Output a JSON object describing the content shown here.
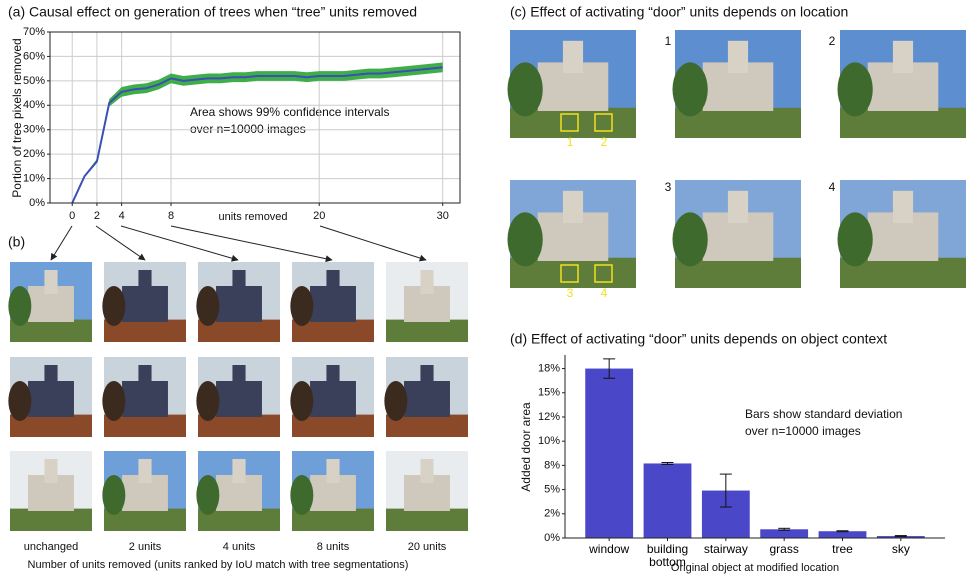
{
  "chart_data": [
    {
      "type": "line",
      "title": "(a) Causal effect on generation of trees when “tree” units removed",
      "xlabel": "units removed",
      "ylabel": "Portion of tree pixels removed",
      "annotation": [
        "Area shows 99% confidence intervals",
        "over n=10000 images"
      ],
      "x": [
        0,
        1,
        2,
        3,
        4,
        5,
        6,
        7,
        8,
        9,
        10,
        11,
        12,
        13,
        14,
        15,
        16,
        17,
        18,
        19,
        20,
        21,
        22,
        23,
        24,
        25,
        26,
        27,
        28,
        29,
        30
      ],
      "values": [
        0,
        11,
        17,
        41,
        45.5,
        46.5,
        47,
        48.5,
        51,
        50,
        50.5,
        51,
        51,
        51.5,
        51.5,
        52,
        52,
        52,
        52,
        51.5,
        52,
        52,
        52,
        52.5,
        53,
        53,
        53.5,
        54,
        54.5,
        55,
        55.5
      ],
      "upper": [
        0,
        11.5,
        18,
        42.5,
        47.5,
        48.5,
        49,
        50.5,
        53,
        52,
        52.5,
        53,
        53,
        53.5,
        53.5,
        54,
        54,
        54,
        54,
        53.5,
        54,
        54,
        54,
        54.5,
        55,
        55,
        55.5,
        56,
        56.5,
        57,
        57.5
      ],
      "lower": [
        0,
        10.5,
        16.5,
        39.5,
        43.5,
        44.5,
        45,
        46.5,
        49,
        48,
        48.5,
        49,
        49,
        49.5,
        49.5,
        50,
        50,
        50,
        50,
        49.5,
        50,
        50,
        50,
        50.5,
        51,
        51,
        51.5,
        52,
        52.5,
        53,
        53.5
      ],
      "color": "#3b4fb5",
      "band_color": "#3fae49",
      "xlim": [
        -1.8,
        31.4
      ],
      "xticks": [
        0,
        2,
        4,
        8,
        20,
        30
      ],
      "ylim": [
        0,
        70
      ],
      "yticks": [
        {
          "value": 0,
          "label": "0%"
        },
        {
          "value": 10,
          "label": "10%"
        },
        {
          "value": 20,
          "label": "20%"
        },
        {
          "value": 30,
          "label": "30%"
        },
        {
          "value": 40,
          "label": "40%"
        },
        {
          "value": 50,
          "label": "50%"
        },
        {
          "value": 60,
          "label": "60%"
        },
        {
          "value": 70,
          "label": "70%"
        }
      ],
      "grid": true
    },
    {
      "type": "bar",
      "title": "(d) Effect of activating “door” units depends on object context",
      "xlabel": "Original object at modified location",
      "ylabel": "Added door area",
      "annotation": [
        "Bars show standard deviation",
        "over n=10000 images"
      ],
      "categories": [
        "window",
        "building bottom",
        "stairway",
        "grass",
        "tree",
        "sky"
      ],
      "values": [
        17.5,
        7.7,
        4.9,
        0.9,
        0.7,
        0.2
      ],
      "errors": [
        1,
        0.1,
        1.7,
        0.1,
        0.05,
        0.05
      ],
      "color": "#4a48c8",
      "ylim": [
        0,
        18.9
      ],
      "yticks": [
        {
          "value": 0,
          "label": "0%"
        },
        {
          "value": 2.5,
          "label": "2%"
        },
        {
          "value": 5,
          "label": "5%"
        },
        {
          "value": 7.5,
          "label": "8%"
        },
        {
          "value": 10,
          "label": "10%"
        },
        {
          "value": 12.5,
          "label": "12%"
        },
        {
          "value": 15,
          "label": "15%"
        },
        {
          "value": 17.5,
          "label": "18%"
        }
      ],
      "grid": false
    }
  ],
  "panel_b": {
    "label": "(b)",
    "captions": [
      "unchanged",
      "2 units",
      "4 units",
      "8 units",
      "20 units"
    ],
    "footer": "Number of units removed (units ranked by IoU match with tree segmentations)"
  },
  "panel_c": {
    "title": "(c) Effect of activating “door” units depends on location",
    "image_numbers": [
      "1",
      "2",
      "3",
      "4"
    ],
    "box_labels": [
      "1",
      "2",
      "3",
      "4"
    ]
  }
}
